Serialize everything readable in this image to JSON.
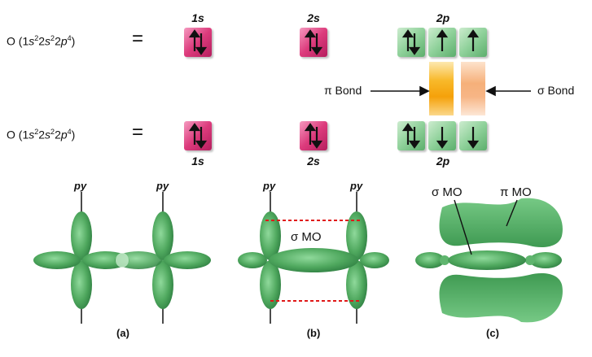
{
  "config_top": {
    "prefix": "O (1",
    "s1": "s",
    "e1": "2",
    "mid1": "2",
    "s2": "s",
    "e2": "2",
    "mid2": "2",
    "s3": "p",
    "e3": "4",
    "suffix": ")"
  },
  "config_bottom": {
    "prefix": "O (1",
    "s1": "s",
    "e1": "2",
    "mid1": "2",
    "s2": "s",
    "e2": "2",
    "mid2": "2",
    "s3": "p",
    "e3": "4",
    "suffix": ")"
  },
  "equals": "=",
  "labels_top": {
    "l1s": "1s",
    "l2s": "2s",
    "l2p": "2p"
  },
  "labels_bottom": {
    "l1s": "1s",
    "l2s": "2s",
    "l2p": "2p"
  },
  "pi_bond": "π Bond",
  "sigma_bond": "σ Bond",
  "orbitals": {
    "py": "py"
  },
  "sigma_mo": "σ MO",
  "pi_mo": "π MO",
  "captions": {
    "a": "(a)",
    "b": "(b)",
    "c": "(c)"
  },
  "colors": {
    "pink": "#dc3b7c",
    "green": "#8fd19a",
    "orbital_green": "#4fa85e",
    "pi_bond_orange": "#f5a10a",
    "sigma_bond_peach": "#f6b07a",
    "dash_red": "#e01818"
  }
}
